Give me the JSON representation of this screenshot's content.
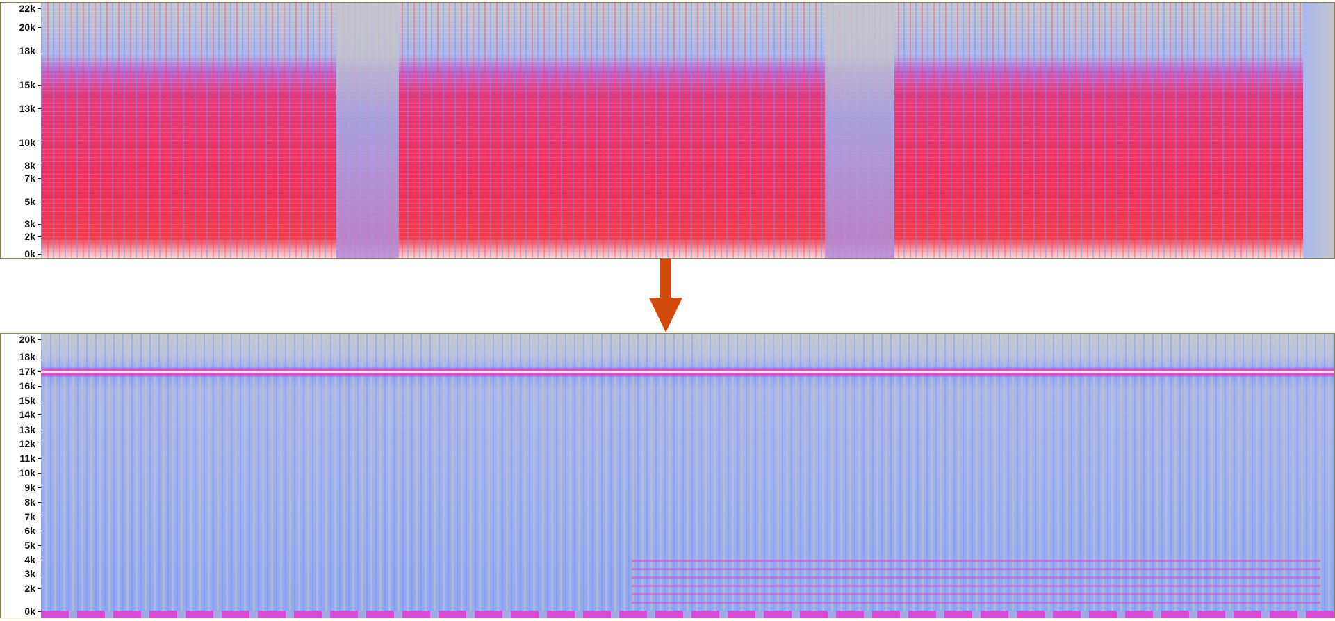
{
  "top_spectrogram": {
    "axis_labels": [
      "22k",
      "20k",
      "18k",
      "15k",
      "13k",
      "10k",
      "8k",
      "7k",
      "5k",
      "3k",
      "2k",
      "0k"
    ]
  },
  "bottom_spectrogram": {
    "axis_labels": [
      "20k",
      "18k",
      "17k",
      "16k",
      "15k",
      "14k",
      "13k",
      "12k",
      "11k",
      "10k",
      "9k",
      "8k",
      "7k",
      "6k",
      "5k",
      "4k",
      "3k",
      "2k",
      "0k"
    ]
  }
}
